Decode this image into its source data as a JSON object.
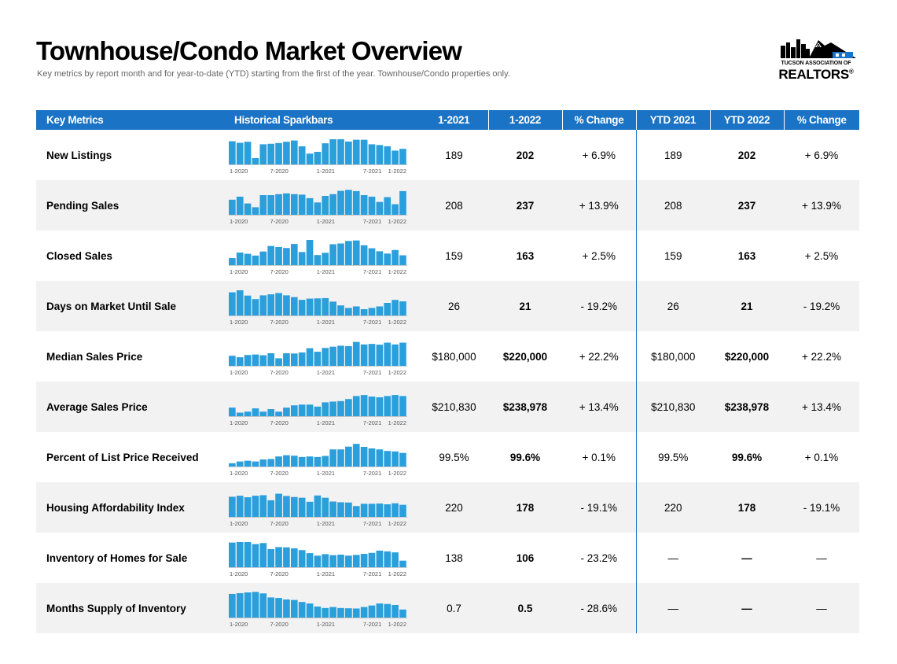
{
  "header": {
    "title": "Townhouse/Condo Market Overview",
    "subtitle": "Key metrics by report month and for year-to-date (YTD) starting from the first of the year. Townhouse/Condo properties only."
  },
  "logo": {
    "line1": "TUCSON ASSOCIATION OF",
    "line2": "REALTORS",
    "reg": "®"
  },
  "table": {
    "headers": [
      "Key Metrics",
      "Historical Sparkbars",
      "1-2021",
      "1-2022",
      "% Change",
      "YTD 2021",
      "YTD 2022",
      "% Change"
    ],
    "spark_labels": [
      "1-2020",
      "7-2020",
      "1-2021",
      "7-2021",
      "1-2022"
    ],
    "bar_color": "#2a9fdc",
    "header_color": "#1a73c5",
    "rows": [
      {
        "metric": "New Listings",
        "v2021": "189",
        "v2022": "202",
        "change": "+ 6.9%",
        "ytd2021": "189",
        "ytd2022": "202",
        "ytd_change": "+ 6.9%",
        "bars": [
          0.92,
          0.86,
          0.9,
          0.25,
          0.8,
          0.82,
          0.85,
          0.9,
          0.95,
          0.72,
          0.43,
          0.5,
          0.84,
          1.0,
          1.0,
          0.91,
          0.98,
          0.98,
          0.8,
          0.77,
          0.72,
          0.55,
          0.62
        ]
      },
      {
        "metric": "Pending Sales",
        "v2021": "208",
        "v2022": "237",
        "change": "+ 13.9%",
        "ytd2021": "208",
        "ytd2022": "237",
        "ytd_change": "+ 13.9%",
        "bars": [
          0.6,
          0.72,
          0.45,
          0.3,
          0.78,
          0.78,
          0.82,
          0.85,
          0.82,
          0.8,
          0.66,
          0.49,
          0.75,
          0.82,
          0.95,
          0.99,
          0.94,
          0.78,
          0.72,
          0.51,
          0.7,
          0.42,
          0.94
        ]
      },
      {
        "metric": "Closed Sales",
        "v2021": "159",
        "v2022": "163",
        "change": "+ 2.5%",
        "ytd2021": "159",
        "ytd2022": "163",
        "ytd_change": "+ 2.5%",
        "bars": [
          0.28,
          0.5,
          0.45,
          0.38,
          0.54,
          0.76,
          0.72,
          0.68,
          0.84,
          0.52,
          1.0,
          0.4,
          0.49,
          0.83,
          0.86,
          0.96,
          0.98,
          0.79,
          0.67,
          0.55,
          0.46,
          0.6,
          0.39
        ]
      },
      {
        "metric": "Days on Market Until Sale",
        "v2021": "26",
        "v2022": "21",
        "change": "- 19.2%",
        "ytd2021": "26",
        "ytd2022": "21",
        "ytd_change": "- 19.2%",
        "bars": [
          0.92,
          1.0,
          0.79,
          0.65,
          0.8,
          0.84,
          0.89,
          0.8,
          0.73,
          0.62,
          0.67,
          0.68,
          0.69,
          0.55,
          0.4,
          0.3,
          0.36,
          0.25,
          0.3,
          0.36,
          0.5,
          0.62,
          0.56
        ]
      },
      {
        "metric": "Median Sales Price",
        "v2021": "$180,000",
        "v2022": "$220,000",
        "change": "+ 22.2%",
        "ytd2021": "$180,000",
        "ytd2022": "$220,000",
        "ytd_change": "+ 22.2%",
        "bars": [
          0.4,
          0.34,
          0.43,
          0.45,
          0.42,
          0.5,
          0.3,
          0.5,
          0.49,
          0.53,
          0.7,
          0.56,
          0.71,
          0.76,
          0.8,
          0.78,
          0.95,
          0.85,
          0.87,
          0.84,
          0.92,
          0.85,
          0.92
        ]
      },
      {
        "metric": "Average Sales Price",
        "v2021": "$210,830",
        "v2022": "$238,978",
        "change": "+ 13.4%",
        "ytd2021": "$210,830",
        "ytd2022": "$238,978",
        "ytd_change": "+ 13.4%",
        "bars": [
          0.34,
          0.14,
          0.18,
          0.31,
          0.18,
          0.28,
          0.18,
          0.34,
          0.43,
          0.46,
          0.46,
          0.38,
          0.55,
          0.58,
          0.6,
          0.68,
          0.8,
          0.84,
          0.78,
          0.75,
          0.8,
          0.84,
          0.8
        ]
      },
      {
        "metric": "Percent of List Price Received",
        "v2021": "99.5%",
        "v2022": "99.6%",
        "change": "+ 0.1%",
        "ytd2021": "99.5%",
        "ytd2022": "99.6%",
        "ytd_change": "+ 0.1%",
        "bars": [
          0.13,
          0.2,
          0.23,
          0.2,
          0.28,
          0.3,
          0.4,
          0.45,
          0.43,
          0.38,
          0.4,
          0.38,
          0.42,
          0.68,
          0.68,
          0.79,
          0.9,
          0.78,
          0.72,
          0.68,
          0.62,
          0.6,
          0.54
        ]
      },
      {
        "metric": "Housing Affordability Index",
        "v2021": "220",
        "v2022": "178",
        "change": "- 19.1%",
        "ytd2021": "220",
        "ytd2022": "178",
        "ytd_change": "- 19.1%",
        "bars": [
          0.8,
          0.84,
          0.78,
          0.84,
          0.86,
          0.66,
          0.92,
          0.83,
          0.79,
          0.76,
          0.6,
          0.85,
          0.76,
          0.61,
          0.58,
          0.57,
          0.43,
          0.52,
          0.52,
          0.53,
          0.5,
          0.54,
          0.48
        ]
      },
      {
        "metric": "Inventory of Homes for Sale",
        "v2021": "138",
        "v2022": "106",
        "change": "- 23.2%",
        "ytd2021": "—",
        "ytd2022": "—",
        "ytd_change": "—",
        "bars": [
          0.98,
          1.0,
          1.0,
          0.92,
          0.96,
          0.72,
          0.8,
          0.79,
          0.75,
          0.68,
          0.56,
          0.46,
          0.52,
          0.48,
          0.5,
          0.46,
          0.49,
          0.53,
          0.57,
          0.66,
          0.63,
          0.59,
          0.26
        ]
      },
      {
        "metric": "Months Supply of Inventory",
        "v2021": "0.7",
        "v2022": "0.5",
        "change": "- 28.6%",
        "ytd2021": "—",
        "ytd2022": "—",
        "ytd_change": "—",
        "bars": [
          0.94,
          0.97,
          1.0,
          1.02,
          0.96,
          0.8,
          0.78,
          0.72,
          0.7,
          0.62,
          0.56,
          0.44,
          0.38,
          0.42,
          0.38,
          0.37,
          0.36,
          0.42,
          0.48,
          0.56,
          0.54,
          0.5,
          0.32
        ]
      }
    ]
  }
}
